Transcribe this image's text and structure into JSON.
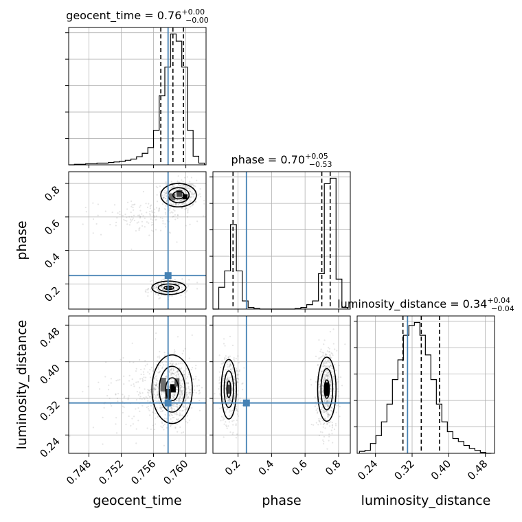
{
  "chart_data": {
    "type": "corner",
    "parameters": [
      {
        "key": "geocent_time",
        "xlabel": "geocent_time",
        "title_main": "geocent_time = 0.76",
        "title_sup": "+0.00",
        "title_sub": "−0.00",
        "range": [
          0.7455,
          0.7625
        ],
        "ticks": [
          0.748,
          0.752,
          0.756,
          0.76
        ],
        "tick_labels": [
          "0.748",
          "0.752",
          "0.756",
          "0.760"
        ],
        "truth": 0.7578,
        "quantiles": [
          0.7569,
          0.7584,
          0.7597
        ],
        "hist_edges": [
          0.7455,
          0.7462,
          0.7469,
          0.7476,
          0.7483,
          0.749,
          0.7497,
          0.7504,
          0.7511,
          0.7518,
          0.7525,
          0.7532,
          0.7539,
          0.7546,
          0.7553,
          0.756,
          0.7567,
          0.7574,
          0.7581,
          0.7588,
          0.7595,
          0.7602,
          0.7609,
          0.7616,
          0.7623
        ],
        "hist_counts": [
          0.0,
          0.2,
          0.2,
          0.4,
          0.4,
          0.6,
          0.6,
          0.8,
          1.0,
          1.2,
          1.6,
          2.0,
          2.8,
          4.0,
          6.0,
          12.0,
          24.0,
          34.0,
          45.5,
          43.0,
          34.0,
          12.0,
          3.0,
          0.6
        ]
      },
      {
        "key": "phase",
        "xlabel": "phase",
        "ylabel": "phase",
        "title_main": "phase = 0.70",
        "title_sup": "+0.05",
        "title_sub": "−0.53",
        "range": [
          0.05,
          0.87
        ],
        "ticks": [
          0.2,
          0.4,
          0.6,
          0.8
        ],
        "tick_labels": [
          "0.2",
          "0.4",
          "0.6",
          "0.8"
        ],
        "truth": 0.25,
        "quantiles": [
          0.17,
          0.7,
          0.75
        ],
        "hist_edges": [
          0.05,
          0.085,
          0.12,
          0.155,
          0.19,
          0.225,
          0.26,
          0.295,
          0.33,
          0.365,
          0.4,
          0.435,
          0.47,
          0.505,
          0.54,
          0.575,
          0.61,
          0.645,
          0.68,
          0.715,
          0.75,
          0.785,
          0.82,
          0.855
        ],
        "hist_counts": [
          0.0,
          4.0,
          7.0,
          15.5,
          7.0,
          1.5,
          0.3,
          0.1,
          0.0,
          0.0,
          0.0,
          0.0,
          0.0,
          0.0,
          0.1,
          0.3,
          0.8,
          1.5,
          6.5,
          23.0,
          24.0,
          5.5,
          0.3
        ]
      },
      {
        "key": "luminosity_distance",
        "xlabel": "luminosity_distance",
        "ylabel": "luminosity_distance",
        "title_main": "luminosity_distance = 0.34",
        "title_sup": "+0.04",
        "title_sub": "−0.04",
        "range": [
          0.2,
          0.5
        ],
        "ticks": [
          0.24,
          0.32,
          0.4,
          0.48
        ],
        "tick_labels": [
          "0.24",
          "0.32",
          "0.40",
          "0.48"
        ],
        "truth": 0.31,
        "quantiles": [
          0.3,
          0.34,
          0.38
        ],
        "hist_edges": [
          0.205,
          0.217,
          0.229,
          0.241,
          0.253,
          0.265,
          0.277,
          0.289,
          0.301,
          0.313,
          0.325,
          0.337,
          0.349,
          0.361,
          0.373,
          0.385,
          0.397,
          0.409,
          0.421,
          0.433,
          0.445,
          0.457,
          0.469,
          0.481,
          0.493
        ],
        "hist_counts": [
          0.2,
          0.3,
          1.0,
          1.8,
          3.2,
          5.0,
          7.5,
          9.5,
          12.0,
          13.0,
          13.3,
          12.0,
          10.0,
          7.5,
          5.0,
          3.2,
          2.2,
          1.5,
          1.2,
          0.8,
          0.5,
          0.3,
          0.1,
          0.0
        ]
      }
    ],
    "pairs": [
      {
        "x": "geocent_time",
        "y": "phase",
        "clusters": [
          {
            "cx": 0.7592,
            "cy": 0.73,
            "sx": 0.0011,
            "sy": 0.045,
            "n": 420
          },
          {
            "cx": 0.7578,
            "cy": 0.175,
            "sx": 0.0012,
            "sy": 0.025,
            "n": 200
          },
          {
            "cx": 0.7548,
            "cy": 0.6,
            "sx": 0.003,
            "sy": 0.05,
            "n": 140
          }
        ],
        "contours": [
          {
            "cx": 0.7591,
            "cy": 0.73,
            "rx": [
              0.0007,
              0.0013,
              0.0022
            ],
            "ry": [
              0.022,
              0.045,
              0.07
            ]
          },
          {
            "cx": 0.7579,
            "cy": 0.177,
            "rx": [
              0.0006,
              0.0013,
              0.0021
            ],
            "ry": [
              0.01,
              0.023,
              0.04
            ]
          }
        ],
        "density_cells": [
          {
            "x": 0.7599,
            "y": 0.72,
            "w": 0.0006,
            "h": 0.03,
            "shade": 0.0
          },
          {
            "x": 0.7592,
            "y": 0.74,
            "w": 0.0007,
            "h": 0.04,
            "shade": 0.35
          },
          {
            "x": 0.7583,
            "y": 0.72,
            "w": 0.0008,
            "h": 0.04,
            "shade": 0.55
          },
          {
            "x": 0.7579,
            "y": 0.18,
            "w": 0.0007,
            "h": 0.02,
            "shade": 0.3
          }
        ]
      },
      {
        "x": "geocent_time",
        "y": "luminosity_distance",
        "clusters": [
          {
            "cx": 0.7583,
            "cy": 0.338,
            "sx": 0.0015,
            "sy": 0.035,
            "n": 700
          },
          {
            "cx": 0.7545,
            "cy": 0.33,
            "sx": 0.003,
            "sy": 0.05,
            "n": 150
          }
        ],
        "contours": [
          {
            "cx": 0.7583,
            "cy": 0.34,
            "rx": [
              0.0008,
              0.0016,
              0.0025
            ],
            "ry": [
              0.025,
              0.05,
              0.075
            ]
          }
        ],
        "density_cells": [
          {
            "x": 0.7584,
            "y": 0.342,
            "w": 0.0007,
            "h": 0.018,
            "shade": 0.0
          },
          {
            "x": 0.7578,
            "y": 0.33,
            "w": 0.0007,
            "h": 0.022,
            "shade": 0.2
          },
          {
            "x": 0.7589,
            "y": 0.355,
            "w": 0.0006,
            "h": 0.018,
            "shade": 0.45
          },
          {
            "x": 0.7572,
            "y": 0.35,
            "w": 0.0007,
            "h": 0.03,
            "shade": 0.55
          }
        ]
      },
      {
        "x": "phase",
        "y": "luminosity_distance",
        "clusters": [
          {
            "cx": 0.15,
            "cy": 0.34,
            "sx": 0.03,
            "sy": 0.04,
            "n": 350
          },
          {
            "cx": 0.73,
            "cy": 0.34,
            "sx": 0.03,
            "sy": 0.045,
            "n": 550
          }
        ],
        "contours": [
          {
            "cx": 0.145,
            "cy": 0.34,
            "rx": [
              0.012,
              0.028,
              0.045
            ],
            "ry": [
              0.018,
              0.04,
              0.065
            ]
          },
          {
            "cx": 0.73,
            "cy": 0.34,
            "rx": [
              0.015,
              0.035,
              0.055
            ],
            "ry": [
              0.02,
              0.045,
              0.07
            ]
          }
        ],
        "density_cells": [
          {
            "x": 0.73,
            "y": 0.34,
            "w": 0.025,
            "h": 0.03,
            "shade": 0.0
          },
          {
            "x": 0.145,
            "y": 0.34,
            "w": 0.02,
            "h": 0.02,
            "shade": 0.3
          }
        ]
      }
    ]
  }
}
